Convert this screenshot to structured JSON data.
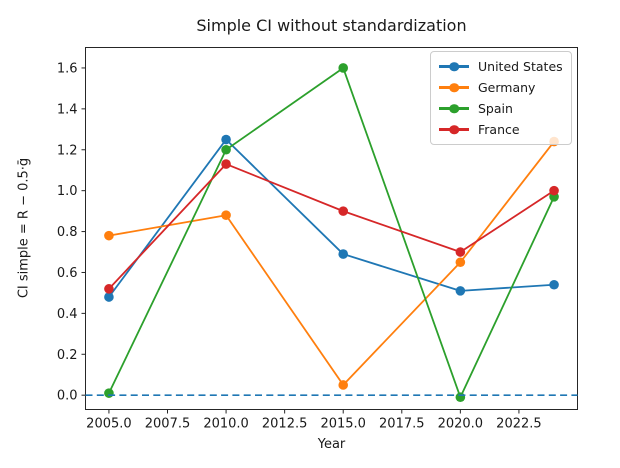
{
  "chart_data": {
    "type": "line",
    "title": "Simple CI without standardization",
    "xlabel": "Year",
    "ylabel": "CI simple = R − 0.5·ḡ",
    "x": [
      2005,
      2010,
      2015,
      2020,
      2024
    ],
    "series": [
      {
        "name": "United States",
        "color": "#1f77b4",
        "marker": "circle",
        "values": [
          0.48,
          1.25,
          0.69,
          0.51,
          0.54
        ]
      },
      {
        "name": "Germany",
        "color": "#ff7f0e",
        "marker": "circle",
        "values": [
          0.78,
          0.88,
          0.05,
          0.65,
          1.24
        ]
      },
      {
        "name": "Spain",
        "color": "#2ca02c",
        "marker": "circle",
        "values": [
          0.01,
          1.2,
          1.6,
          -0.01,
          0.97
        ]
      },
      {
        "name": "France",
        "color": "#d62728",
        "marker": "circle",
        "values": [
          0.52,
          1.13,
          0.9,
          0.7,
          1.0
        ]
      }
    ],
    "x_ticks": {
      "values": [
        2005,
        2007.5,
        2010,
        2012.5,
        2015,
        2017.5,
        2020,
        2022.5
      ],
      "labels": [
        "2005.0",
        "2007.5",
        "2010.0",
        "2012.5",
        "2015.0",
        "2017.5",
        "2020.0",
        "2022.5"
      ]
    },
    "y_ticks": {
      "values": [
        0.0,
        0.2,
        0.4,
        0.6,
        0.8,
        1.0,
        1.2,
        1.4,
        1.6
      ],
      "labels": [
        "0.0",
        "0.2",
        "0.4",
        "0.6",
        "0.8",
        "1.0",
        "1.2",
        "1.4",
        "1.6"
      ]
    },
    "xlim": [
      2004.0,
      2025.0
    ],
    "ylim": [
      -0.07,
      1.7
    ],
    "zero_line": {
      "y": 0,
      "color": "#1f77b4",
      "style": "dashed"
    },
    "legend": {
      "position": "upper right",
      "entries": [
        "United States",
        "Germany",
        "Spain",
        "France"
      ]
    },
    "grid": false,
    "axis_color": "#262626",
    "text_color": "#1a1a1a"
  }
}
